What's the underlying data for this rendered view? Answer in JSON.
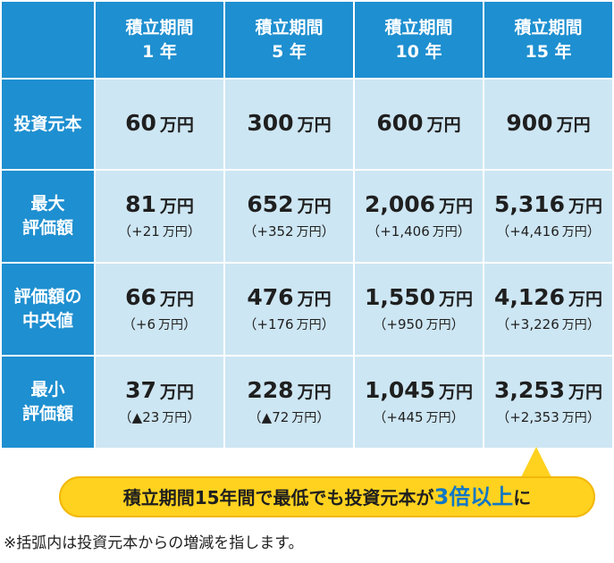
{
  "columns": [
    {
      "line1": "積立期間",
      "line2": "1 年"
    },
    {
      "line1": "積立期間",
      "line2": "5 年"
    },
    {
      "line1": "積立期間",
      "line2": "10 年"
    },
    {
      "line1": "積立期間",
      "line2": "15 年"
    }
  ],
  "unit": "万円",
  "rows": [
    {
      "label1": "投資元本",
      "label2": "",
      "cells": [
        {
          "value": "60",
          "sub": ""
        },
        {
          "value": "300",
          "sub": ""
        },
        {
          "value": "600",
          "sub": ""
        },
        {
          "value": "900",
          "sub": ""
        }
      ]
    },
    {
      "label1": "最大",
      "label2": "評価額",
      "cells": [
        {
          "value": "81",
          "sub_open": "（+21",
          "sub_close": "）"
        },
        {
          "value": "652",
          "sub_open": "（+352",
          "sub_close": "）"
        },
        {
          "value": "2,006",
          "sub_open": "（+1,406",
          "sub_close": "）"
        },
        {
          "value": "5,316",
          "sub_open": "（+4,416",
          "sub_close": "）"
        }
      ]
    },
    {
      "label1": "評価額の",
      "label2": "中央値",
      "cells": [
        {
          "value": "66",
          "sub_open": "（+6",
          "sub_close": "）"
        },
        {
          "value": "476",
          "sub_open": "（+176",
          "sub_close": "）"
        },
        {
          "value": "1,550",
          "sub_open": "（+950",
          "sub_close": "）"
        },
        {
          "value": "4,126",
          "sub_open": "（+3,226",
          "sub_close": "）"
        }
      ]
    },
    {
      "label1": "最小",
      "label2": "評価額",
      "cells": [
        {
          "value": "37",
          "sub_open": "（▲23",
          "sub_close": "）"
        },
        {
          "value": "228",
          "sub_open": "（▲72",
          "sub_close": "）"
        },
        {
          "value": "1,045",
          "sub_open": "（+445",
          "sub_close": "）"
        },
        {
          "value": "3,253",
          "sub_open": "（+2,353",
          "sub_close": "）"
        }
      ]
    }
  ],
  "callout": {
    "before": "積立期間15年間で最低でも投資元本が",
    "emphasis": "3倍以上",
    "after": "に"
  },
  "footnote": "※括弧内は投資元本からの増減を指します。",
  "colors": {
    "header_bg": "#1e8fd0",
    "cell_bg": "#cde6f3",
    "callout_bg": "#ffd21f",
    "emphasis": "#0f77c5"
  }
}
